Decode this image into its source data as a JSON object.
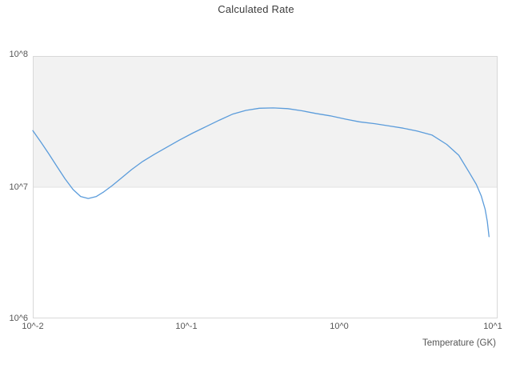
{
  "title": "Calculated Rate",
  "colors": {
    "line": "#5b9cdb",
    "band_fill": "#f2f2f2",
    "plot_border": "#d8d8d8",
    "grid_line": "#e2e2e2",
    "title_text": "#3c3c3c",
    "tick_text": "#565656"
  },
  "chart_data": {
    "type": "line",
    "title": "Calculated Rate",
    "xlabel": "Temperature (GK)",
    "ylabel": "",
    "x_scale": "log",
    "y_scale": "log",
    "xlim": [
      0.01,
      10.74
    ],
    "ylim": [
      1000000,
      100000000
    ],
    "x_ticks": [
      "10^-2",
      "10^-1",
      "10^0",
      "10^1"
    ],
    "x_tick_values": [
      0.01,
      0.1,
      1,
      10
    ],
    "y_ticks": [
      "10^6",
      "10^7",
      "10^8"
    ],
    "y_tick_values": [
      1000000,
      10000000,
      100000000
    ],
    "grid": "shaded band between 1e7 and 1e8",
    "legend": "off",
    "series": [
      {
        "name": "Calculated Rate",
        "points": [
          [
            0.01,
            27000000
          ],
          [
            0.0113,
            22000000
          ],
          [
            0.0127,
            18000000
          ],
          [
            0.0143,
            14500000
          ],
          [
            0.0162,
            11600000
          ],
          [
            0.0183,
            9600000
          ],
          [
            0.0205,
            8500000
          ],
          [
            0.023,
            8200000
          ],
          [
            0.026,
            8500000
          ],
          [
            0.029,
            9200000
          ],
          [
            0.033,
            10300000
          ],
          [
            0.038,
            11800000
          ],
          [
            0.044,
            13600000
          ],
          [
            0.052,
            15700000
          ],
          [
            0.062,
            17800000
          ],
          [
            0.075,
            20200000
          ],
          [
            0.09,
            22800000
          ],
          [
            0.11,
            25800000
          ],
          [
            0.135,
            29000000
          ],
          [
            0.165,
            32500000
          ],
          [
            0.2,
            36000000
          ],
          [
            0.245,
            38500000
          ],
          [
            0.3,
            40000000
          ],
          [
            0.37,
            40200000
          ],
          [
            0.46,
            39700000
          ],
          [
            0.57,
            38200000
          ],
          [
            0.7,
            36500000
          ],
          [
            0.87,
            35000000
          ],
          [
            1.1,
            33000000
          ],
          [
            1.35,
            31500000
          ],
          [
            1.7,
            30500000
          ],
          [
            2.1,
            29300000
          ],
          [
            2.6,
            28200000
          ],
          [
            3.2,
            26800000
          ],
          [
            4.0,
            25000000
          ],
          [
            5.0,
            21200000
          ],
          [
            6.0,
            17500000
          ],
          [
            7.0,
            13000000
          ],
          [
            7.8,
            10500000
          ],
          [
            8.4,
            8600000
          ],
          [
            8.9,
            6800000
          ],
          [
            9.2,
            5500000
          ],
          [
            9.45,
            4200000
          ]
        ]
      }
    ]
  }
}
